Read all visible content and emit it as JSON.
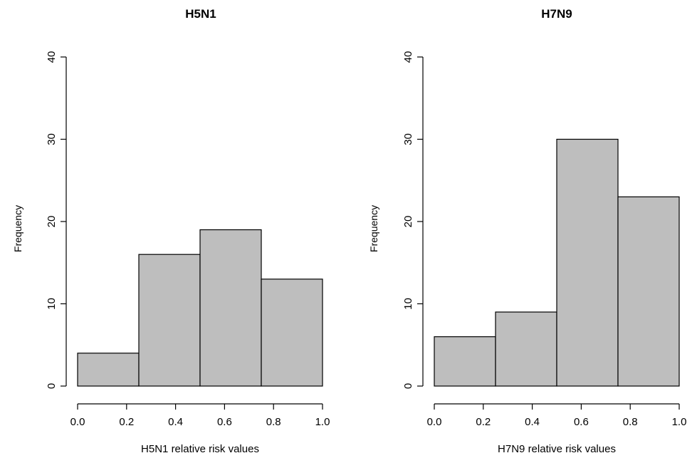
{
  "chart_data": [
    {
      "type": "bar",
      "title": "H5N1",
      "xlabel": "H5N1 relative risk values",
      "ylabel": "Frequency",
      "bins": [
        [
          0.0,
          0.25
        ],
        [
          0.25,
          0.5
        ],
        [
          0.5,
          0.75
        ],
        [
          0.75,
          1.0
        ]
      ],
      "values": [
        4,
        16,
        19,
        13
      ],
      "xlim": [
        0,
        1
      ],
      "ylim": [
        0,
        40
      ],
      "xticks": [
        "0.0",
        "0.2",
        "0.4",
        "0.6",
        "0.8",
        "1.0"
      ],
      "yticks": [
        "0",
        "10",
        "20",
        "30",
        "40"
      ],
      "bar_color": "#bebebe",
      "grid": false
    },
    {
      "type": "bar",
      "title": "H7N9",
      "xlabel": "H7N9 relative risk values",
      "ylabel": "Frequency",
      "bins": [
        [
          0.0,
          0.25
        ],
        [
          0.25,
          0.5
        ],
        [
          0.5,
          0.75
        ],
        [
          0.75,
          1.0
        ]
      ],
      "values": [
        6,
        9,
        30,
        23
      ],
      "xlim": [
        0,
        1
      ],
      "ylim": [
        0,
        40
      ],
      "xticks": [
        "0.0",
        "0.2",
        "0.4",
        "0.6",
        "0.8",
        "1.0"
      ],
      "yticks": [
        "0",
        "10",
        "20",
        "30",
        "40"
      ],
      "bar_color": "#bebebe",
      "grid": false
    }
  ]
}
